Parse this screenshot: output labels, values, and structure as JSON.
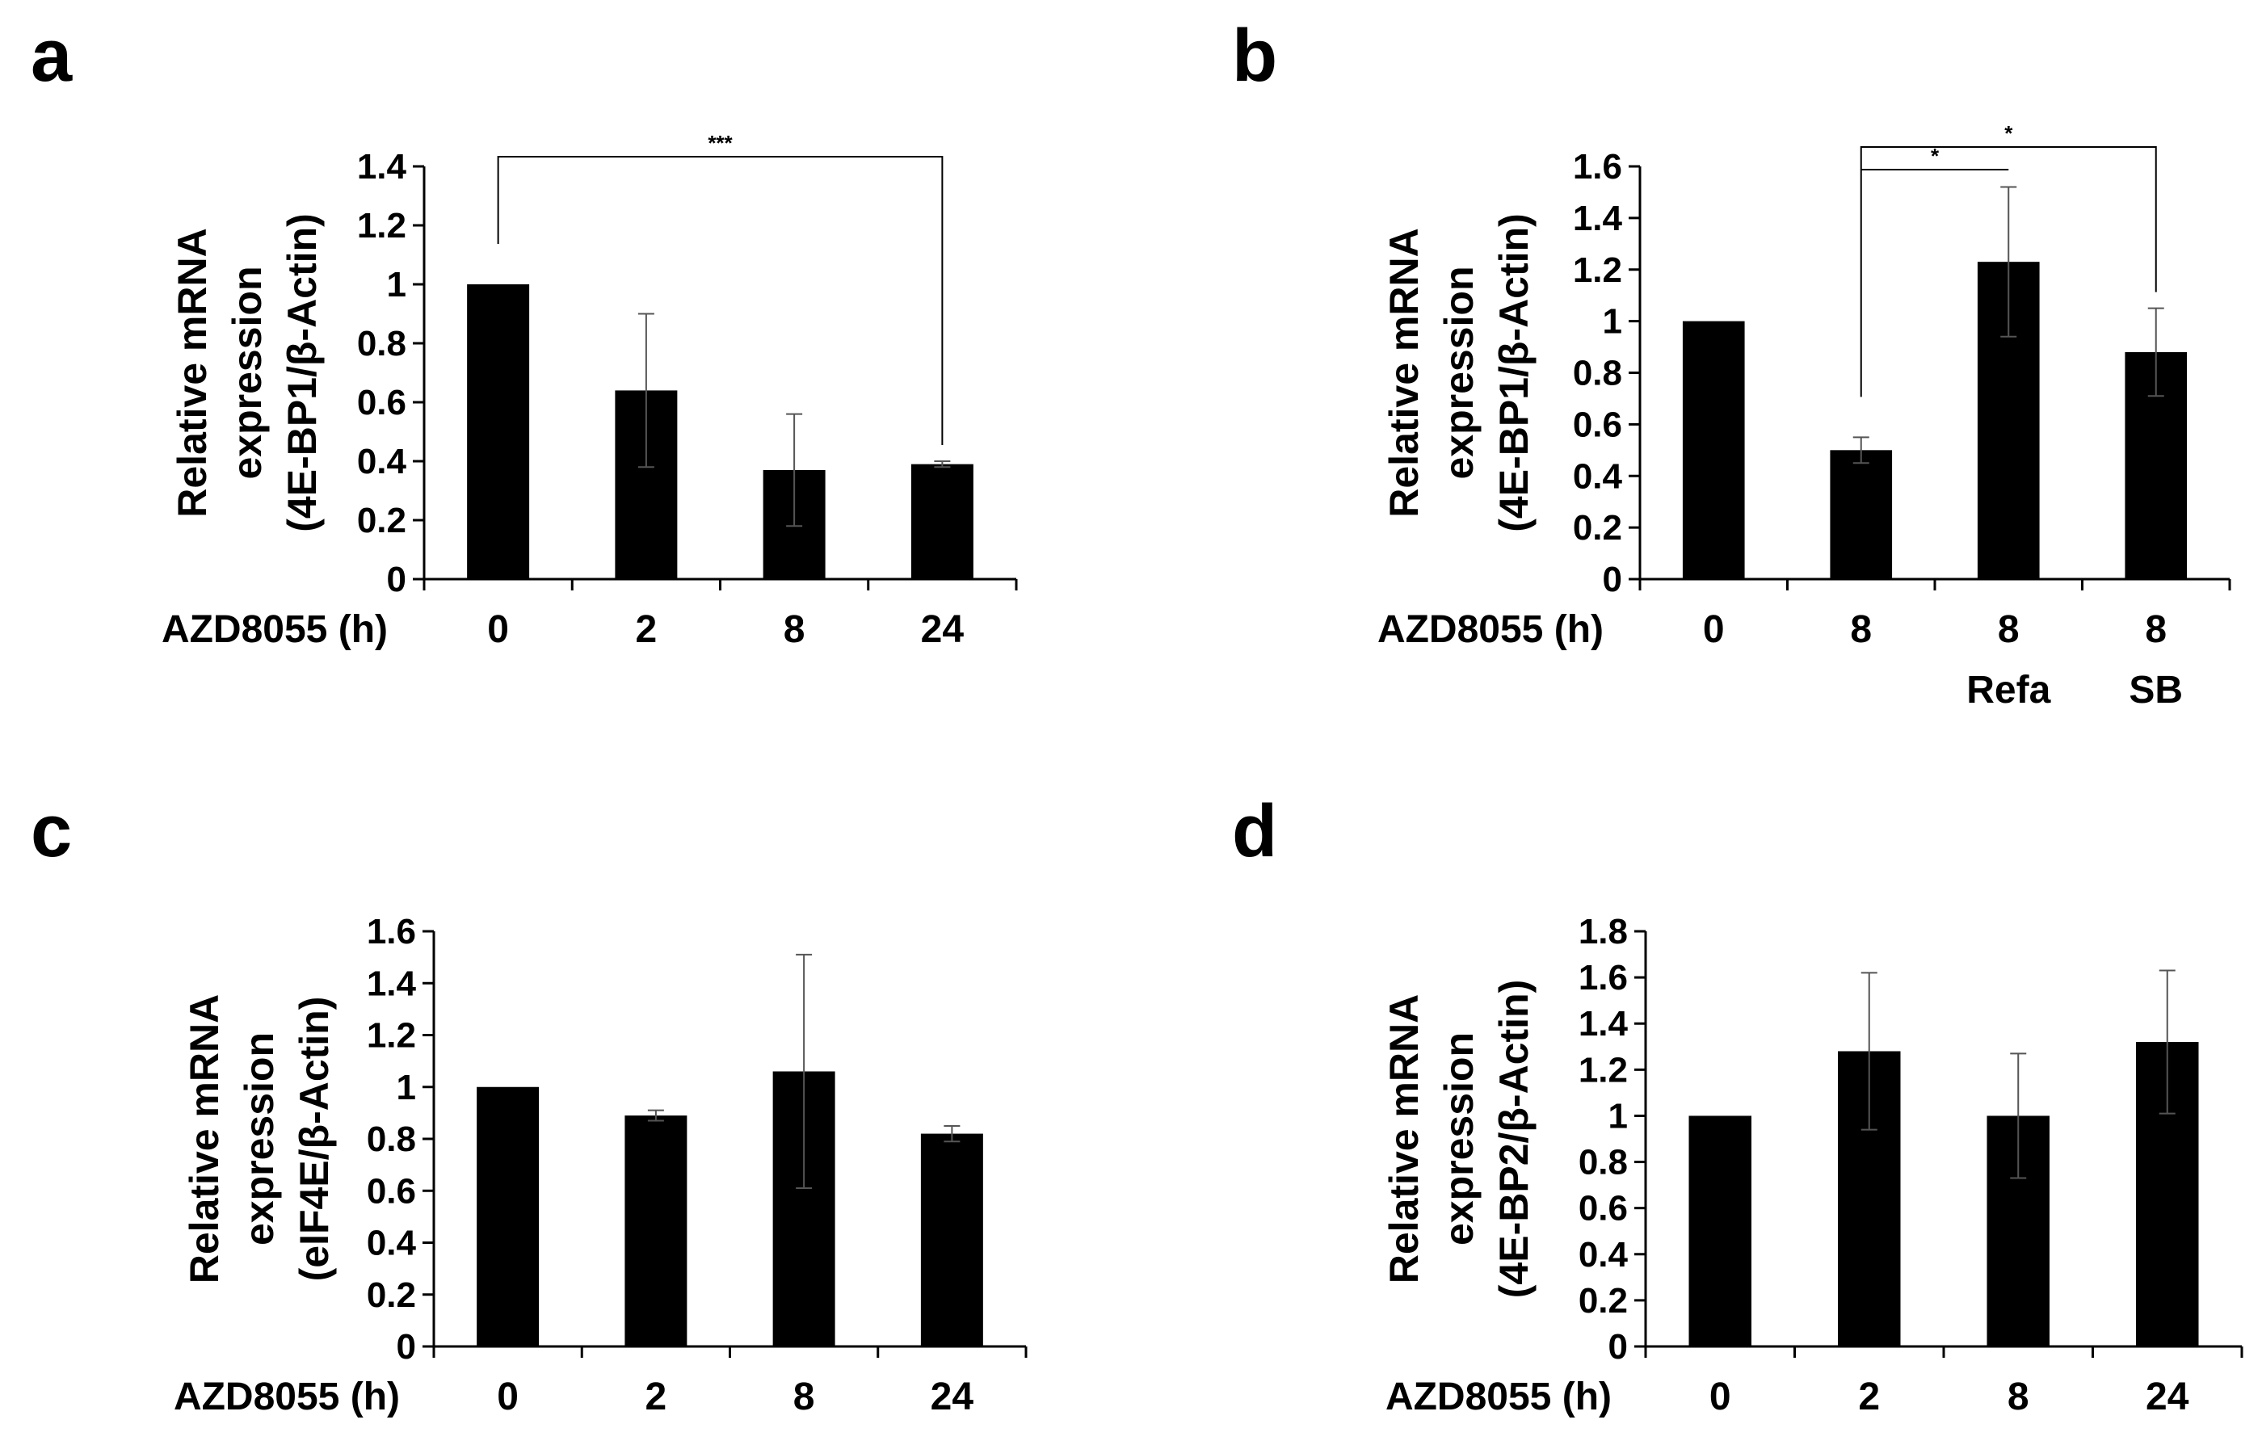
{
  "chart_data": [
    {
      "panel": "a",
      "type": "bar",
      "xlabel": "AZD8055 (h)",
      "ylabel_lines": [
        "Relative mRNA",
        "expression",
        "(4E-BP1/β-Actin)"
      ],
      "categories": [
        "0",
        "2",
        "8",
        "24"
      ],
      "sublabels": [
        "",
        "",
        "",
        ""
      ],
      "values": [
        1.0,
        0.64,
        0.37,
        0.39
      ],
      "errors": [
        0.0,
        0.26,
        0.19,
        0.01
      ],
      "ylim": [
        0,
        1.4
      ],
      "yticks": [
        "0",
        "0.2",
        "0.4",
        "0.6",
        "0.8",
        "1",
        "1.2",
        "1.4"
      ],
      "significance": [
        {
          "from": 0,
          "to": 3,
          "label": "***"
        }
      ]
    },
    {
      "panel": "b",
      "type": "bar",
      "xlabel": "AZD8055 (h)",
      "ylabel_lines": [
        "Relative mRNA",
        "expression",
        "(4E-BP1/β-Actin)"
      ],
      "categories": [
        "0",
        "8",
        "8",
        "8"
      ],
      "sublabels": [
        "",
        "",
        "Refa",
        "SB"
      ],
      "values": [
        1.0,
        0.5,
        1.23,
        0.88
      ],
      "errors": [
        0.0,
        0.05,
        0.29,
        0.17
      ],
      "ylim": [
        0,
        1.6
      ],
      "yticks": [
        "0",
        "0.2",
        "0.4",
        "0.6",
        "0.8",
        "1",
        "1.2",
        "1.4",
        "1.6"
      ],
      "significance": [
        {
          "from": 1,
          "to": 2,
          "label": "*"
        },
        {
          "from": 1,
          "to": 3,
          "label": "*"
        }
      ]
    },
    {
      "panel": "c",
      "type": "bar",
      "xlabel": "AZD8055 (h)",
      "ylabel_lines": [
        "Relative mRNA",
        "expression",
        "(eIF4E/β-Actin)"
      ],
      "categories": [
        "0",
        "2",
        "8",
        "24"
      ],
      "sublabels": [
        "",
        "",
        "",
        ""
      ],
      "values": [
        1.0,
        0.89,
        1.06,
        0.82
      ],
      "errors": [
        0.0,
        0.02,
        0.45,
        0.03
      ],
      "ylim": [
        0,
        1.6
      ],
      "yticks": [
        "0",
        "0.2",
        "0.4",
        "0.6",
        "0.8",
        "1",
        "1.2",
        "1.4",
        "1.6"
      ],
      "significance": []
    },
    {
      "panel": "d",
      "type": "bar",
      "xlabel": "AZD8055 (h)",
      "ylabel_lines": [
        "Relative mRNA",
        "expression",
        "(4E-BP2/β-Actin)"
      ],
      "categories": [
        "0",
        "2",
        "8",
        "24"
      ],
      "sublabels": [
        "",
        "",
        "",
        ""
      ],
      "values": [
        1.0,
        1.28,
        1.0,
        1.32
      ],
      "errors": [
        0.0,
        0.34,
        0.27,
        0.31
      ],
      "ylim": [
        0,
        1.8
      ],
      "yticks": [
        "0",
        "0.2",
        "0.4",
        "0.6",
        "0.8",
        "1",
        "1.2",
        "1.4",
        "1.6",
        "1.8"
      ],
      "significance": []
    }
  ]
}
